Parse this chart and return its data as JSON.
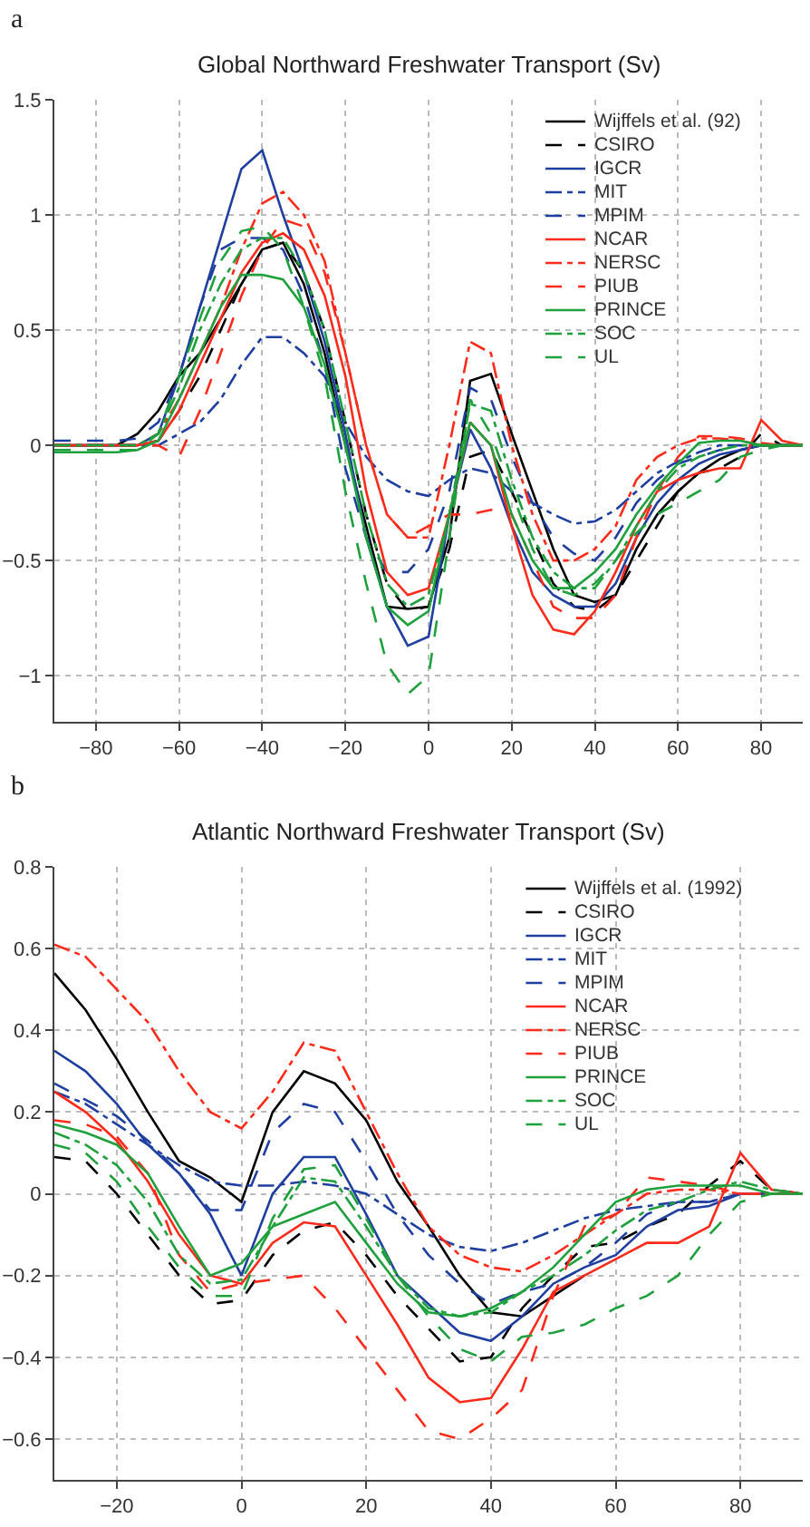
{
  "chart_data": [
    {
      "type": "line",
      "title": "Global Northward Freshwater Transport (Sv)",
      "annotations": [
        "a"
      ],
      "grid": true,
      "legend": "top right",
      "x": [
        -90,
        -75,
        -70,
        -65,
        -60,
        -55,
        -50,
        -45,
        -40,
        -35,
        -30,
        -25,
        -20,
        -15,
        -10,
        -5,
        0,
        5,
        10,
        15,
        20,
        25,
        30,
        35,
        40,
        45,
        50,
        55,
        60,
        65,
        70,
        75,
        80,
        85,
        90
      ],
      "xlim": [
        -90,
        90
      ],
      "ylim": [
        -1.2,
        1.5
      ],
      "xticks": [
        {
          "value": -80,
          "label": "−80"
        },
        {
          "value": -60,
          "label": "−60"
        },
        {
          "value": -40,
          "label": "−40"
        },
        {
          "value": -20,
          "label": "−20"
        },
        0,
        20,
        40,
        60,
        80
      ],
      "yticks": [
        {
          "value": -1,
          "label": "−1"
        },
        {
          "value": -0.5,
          "label": "−0.5"
        },
        0,
        0.5,
        1,
        1.5
      ],
      "series": [
        {
          "name": "Wijffels et al. (92)",
          "color": "#000000",
          "line_style": "solid",
          "values": [
            0,
            0,
            0.05,
            0.15,
            0.3,
            0.4,
            0.55,
            0.7,
            0.85,
            0.88,
            0.7,
            0.4,
            0,
            -0.35,
            -0.7,
            -0.71,
            -0.7,
            -0.4,
            0.28,
            0.31,
            0.05,
            -0.2,
            -0.45,
            -0.65,
            -0.68,
            -0.65,
            -0.45,
            -0.3,
            -0.2,
            -0.12,
            -0.06,
            -0.02,
            0,
            0,
            0
          ]
        },
        {
          "name": "CSIRO",
          "color": "#000000",
          "line_style": "dashed",
          "values": [
            0,
            0,
            0,
            0.02,
            0.15,
            0.3,
            0.5,
            0.7,
            0.85,
            0.88,
            0.75,
            0.5,
            0.1,
            -0.3,
            -0.6,
            -0.72,
            -0.7,
            -0.45,
            -0.05,
            -0.02,
            -0.2,
            -0.4,
            -0.6,
            -0.7,
            -0.72,
            -0.65,
            -0.5,
            -0.35,
            -0.2,
            -0.12,
            -0.1,
            -0.05,
            0.05,
            0,
            0
          ]
        },
        {
          "name": "IGCR",
          "color": "#1f3fa0",
          "line_style": "solid",
          "values": [
            0,
            0,
            0,
            0.05,
            0.3,
            0.6,
            0.9,
            1.2,
            1.28,
            1.0,
            0.75,
            0.45,
            0.05,
            -0.4,
            -0.7,
            -0.87,
            -0.83,
            -0.3,
            0.07,
            -0.1,
            -0.35,
            -0.55,
            -0.65,
            -0.7,
            -0.7,
            -0.6,
            -0.4,
            -0.25,
            -0.15,
            -0.08,
            -0.04,
            -0.02,
            0,
            0,
            0
          ]
        },
        {
          "name": "MIT",
          "color": "#1f3fa0",
          "line_style": "dashdot",
          "values": [
            0,
            0,
            0,
            0,
            0.05,
            0.1,
            0.2,
            0.35,
            0.47,
            0.47,
            0.4,
            0.3,
            0.1,
            -0.05,
            -0.15,
            -0.2,
            -0.22,
            -0.15,
            -0.1,
            -0.12,
            -0.2,
            -0.25,
            -0.3,
            -0.34,
            -0.33,
            -0.28,
            -0.2,
            -0.12,
            -0.07,
            -0.03,
            0,
            0,
            0,
            0,
            0
          ]
        },
        {
          "name": "MPIM",
          "color": "#1f3fa0",
          "line_style": "dashed",
          "values": [
            0.02,
            0.02,
            0.03,
            0.1,
            0.3,
            0.6,
            0.85,
            0.9,
            0.9,
            0.85,
            0.65,
            0.35,
            -0.1,
            -0.4,
            -0.55,
            -0.55,
            -0.45,
            -0.2,
            0.25,
            0.2,
            -0.05,
            -0.25,
            -0.4,
            -0.47,
            -0.5,
            -0.4,
            -0.25,
            -0.15,
            -0.08,
            -0.05,
            -0.02,
            -0.02,
            0,
            0,
            0
          ]
        },
        {
          "name": "NCAR",
          "color": "#ff2a1a",
          "line_style": "solid",
          "values": [
            0,
            0,
            0,
            0.02,
            0.15,
            0.35,
            0.55,
            0.75,
            0.88,
            0.92,
            0.85,
            0.65,
            0.3,
            -0.2,
            -0.55,
            -0.65,
            -0.62,
            -0.3,
            0.1,
            0,
            -0.35,
            -0.65,
            -0.8,
            -0.82,
            -0.72,
            -0.55,
            -0.35,
            -0.2,
            -0.15,
            -0.12,
            -0.1,
            -0.1,
            0.11,
            0.02,
            0
          ]
        },
        {
          "name": "NERSC",
          "color": "#ff2a1a",
          "line_style": "dashdot",
          "values": [
            0,
            0,
            0,
            0.05,
            0.2,
            0.4,
            0.6,
            0.85,
            1.05,
            1.1,
            1.0,
            0.8,
            0.4,
            0,
            -0.3,
            -0.4,
            -0.4,
            0,
            0.45,
            0.4,
            0,
            -0.3,
            -0.5,
            -0.5,
            -0.45,
            -0.35,
            -0.15,
            -0.05,
            0,
            0.03,
            0.03,
            0.02,
            0,
            0,
            0
          ]
        },
        {
          "name": "PIUB",
          "color": "#ff2a1a",
          "line_style": "dashed",
          "values": [
            0,
            0,
            0,
            0,
            -0.05,
            0.15,
            0.4,
            0.65,
            0.85,
            0.98,
            0.95,
            0.75,
            0.4,
            0,
            -0.3,
            -0.4,
            -0.35,
            -0.3,
            -0.3,
            -0.28,
            -0.3,
            -0.5,
            -0.7,
            -0.75,
            -0.75,
            -0.65,
            -0.4,
            -0.2,
            -0.05,
            0.04,
            0.04,
            0.03,
            0.01,
            0,
            0
          ]
        },
        {
          "name": "PRINCE",
          "color": "#1ea03c",
          "line_style": "solid",
          "values": [
            -0.03,
            -0.03,
            -0.02,
            0.02,
            0.2,
            0.4,
            0.6,
            0.74,
            0.74,
            0.72,
            0.6,
            0.35,
            0,
            -0.4,
            -0.7,
            -0.78,
            -0.72,
            -0.3,
            0.1,
            0,
            -0.3,
            -0.5,
            -0.62,
            -0.62,
            -0.55,
            -0.45,
            -0.3,
            -0.18,
            -0.08,
            0.01,
            0.02,
            0.02,
            0,
            0,
            0
          ]
        },
        {
          "name": "SOC",
          "color": "#1ea03c",
          "line_style": "dashdot",
          "values": [
            0,
            0,
            0,
            0.05,
            0.25,
            0.5,
            0.7,
            0.85,
            0.9,
            0.9,
            0.75,
            0.5,
            0.1,
            -0.3,
            -0.6,
            -0.7,
            -0.65,
            -0.3,
            0.18,
            0.15,
            -0.15,
            -0.4,
            -0.55,
            -0.62,
            -0.62,
            -0.5,
            -0.35,
            -0.2,
            -0.1,
            -0.05,
            -0.02,
            0,
            0,
            0,
            0
          ]
        },
        {
          "name": "UL",
          "color": "#1ea03c",
          "line_style": "dashed",
          "values": [
            -0.02,
            -0.02,
            -0.02,
            0.05,
            0.3,
            0.55,
            0.8,
            0.93,
            0.95,
            0.85,
            0.6,
            0.3,
            -0.2,
            -0.6,
            -0.95,
            -1.08,
            -1.0,
            -0.4,
            0.2,
            0.05,
            -0.2,
            -0.45,
            -0.62,
            -0.65,
            -0.6,
            -0.5,
            -0.38,
            -0.3,
            -0.25,
            -0.2,
            -0.15,
            -0.05,
            -0.02,
            0,
            0
          ]
        }
      ]
    },
    {
      "type": "line",
      "title": "Atlantic Northward Freshwater Transport (Sv)",
      "annotations": [
        "b"
      ],
      "grid": true,
      "legend": "top right",
      "x": [
        -30,
        -25,
        -20,
        -15,
        -10,
        -5,
        0,
        5,
        10,
        15,
        20,
        25,
        30,
        35,
        40,
        45,
        50,
        55,
        60,
        65,
        70,
        75,
        80,
        85,
        90
      ],
      "xlim": [
        -30,
        90
      ],
      "ylim": [
        -0.7,
        0.8
      ],
      "xticks": [
        {
          "value": -20,
          "label": "−20"
        },
        0,
        20,
        40,
        60,
        80
      ],
      "yticks": [
        {
          "value": -0.6,
          "label": "−0.6"
        },
        {
          "value": -0.4,
          "label": "−0.4"
        },
        {
          "value": -0.2,
          "label": "−0.2"
        },
        0,
        0.2,
        0.4,
        0.6,
        0.8
      ],
      "series": [
        {
          "name": "Wijffels et al. (1992)",
          "color": "#000000",
          "line_style": "solid",
          "values": [
            0.54,
            0.45,
            0.33,
            0.2,
            0.08,
            0.04,
            -0.02,
            0.2,
            0.3,
            0.27,
            0.18,
            0.03,
            -0.08,
            -0.2,
            -0.29,
            -0.3,
            -0.25,
            -0.2,
            null,
            null,
            null,
            null,
            null,
            null,
            null
          ]
        },
        {
          "name": "CSIRO",
          "color": "#000000",
          "line_style": "dashed",
          "values": [
            0.09,
            0.08,
            0,
            -0.1,
            -0.2,
            -0.27,
            -0.26,
            -0.15,
            -0.09,
            -0.07,
            -0.15,
            -0.25,
            -0.33,
            -0.41,
            -0.4,
            -0.28,
            -0.2,
            -0.13,
            -0.12,
            -0.08,
            -0.05,
            0.02,
            0.08,
            0.01,
            0
          ]
        },
        {
          "name": "IGCR",
          "color": "#1f3fa0",
          "line_style": "solid",
          "values": [
            0.35,
            0.3,
            0.22,
            0.12,
            0.05,
            -0.05,
            -0.2,
            0,
            0.09,
            0.09,
            -0.05,
            -0.2,
            -0.27,
            -0.34,
            -0.36,
            -0.3,
            -0.22,
            -0.18,
            -0.15,
            -0.08,
            -0.04,
            -0.03,
            0,
            0,
            0
          ]
        },
        {
          "name": "MIT",
          "color": "#1f3fa0",
          "line_style": "dashdot",
          "values": [
            0.25,
            0.22,
            0.17,
            0.12,
            0.07,
            0.03,
            0.02,
            0.02,
            0.03,
            0.02,
            0,
            -0.05,
            -0.1,
            -0.13,
            -0.14,
            -0.12,
            -0.09,
            -0.06,
            -0.04,
            -0.03,
            -0.02,
            -0.02,
            0,
            0,
            0
          ]
        },
        {
          "name": "MPIM",
          "color": "#1f3fa0",
          "line_style": "dashed",
          "values": [
            0.27,
            0.23,
            0.19,
            0.13,
            0.05,
            -0.04,
            -0.04,
            0.15,
            0.22,
            0.2,
            0.08,
            -0.05,
            -0.15,
            -0.22,
            -0.27,
            -0.24,
            -0.22,
            -0.18,
            -0.12,
            -0.05,
            -0.02,
            -0.02,
            0,
            0,
            0
          ]
        },
        {
          "name": "NCAR",
          "color": "#ff2a1a",
          "line_style": "solid",
          "values": [
            0.25,
            0.2,
            0.13,
            0.03,
            -0.1,
            -0.2,
            -0.22,
            -0.12,
            -0.07,
            -0.08,
            -0.2,
            -0.32,
            -0.45,
            -0.51,
            -0.5,
            -0.38,
            -0.24,
            -0.2,
            -0.16,
            -0.12,
            -0.12,
            -0.08,
            0.1,
            0.01,
            0
          ]
        },
        {
          "name": "NERSC",
          "color": "#ff2a1a",
          "line_style": "dashdot",
          "values": [
            0.61,
            0.58,
            0.5,
            0.42,
            0.3,
            0.2,
            0.16,
            0.25,
            0.37,
            0.35,
            0.2,
            0.05,
            -0.08,
            -0.15,
            -0.18,
            -0.19,
            -0.15,
            -0.1,
            -0.05,
            0,
            0.01,
            0.01,
            0,
            0,
            0
          ]
        },
        {
          "name": "PIUB",
          "color": "#ff2a1a",
          "line_style": "dashed",
          "values": [
            0.18,
            0.17,
            0.14,
            0.05,
            -0.15,
            -0.24,
            -0.22,
            -0.21,
            -0.2,
            -0.28,
            -0.38,
            -0.48,
            -0.58,
            -0.6,
            -0.55,
            -0.48,
            -0.25,
            -0.08,
            -0.05,
            0.04,
            0.03,
            0.02,
            0,
            0,
            0
          ]
        },
        {
          "name": "PRINCE",
          "color": "#1ea03c",
          "line_style": "solid",
          "values": [
            0.17,
            0.15,
            0.12,
            0.05,
            -0.08,
            -0.2,
            -0.17,
            -0.08,
            -0.05,
            -0.02,
            -0.12,
            -0.22,
            -0.29,
            -0.3,
            -0.28,
            -0.24,
            -0.18,
            -0.1,
            -0.02,
            0.01,
            0.02,
            0.02,
            0.02,
            0,
            0
          ]
        },
        {
          "name": "SOC",
          "color": "#1ea03c",
          "line_style": "dashdot",
          "values": [
            0.15,
            0.12,
            0.07,
            -0.02,
            -0.15,
            -0.22,
            -0.21,
            -0.08,
            0.04,
            0.03,
            -0.08,
            -0.2,
            -0.28,
            -0.3,
            -0.29,
            -0.24,
            -0.2,
            -0.15,
            -0.09,
            -0.04,
            -0.02,
            0.01,
            0.03,
            0.01,
            0
          ]
        },
        {
          "name": "UL",
          "color": "#1ea03c",
          "line_style": "dashed",
          "values": [
            0.12,
            0.1,
            0.03,
            -0.08,
            -0.18,
            -0.25,
            -0.25,
            -0.06,
            0.06,
            0.07,
            -0.06,
            -0.2,
            -0.3,
            -0.38,
            -0.41,
            -0.35,
            -0.34,
            -0.32,
            -0.28,
            -0.25,
            -0.2,
            -0.1,
            -0.02,
            0,
            0
          ]
        }
      ]
    }
  ]
}
